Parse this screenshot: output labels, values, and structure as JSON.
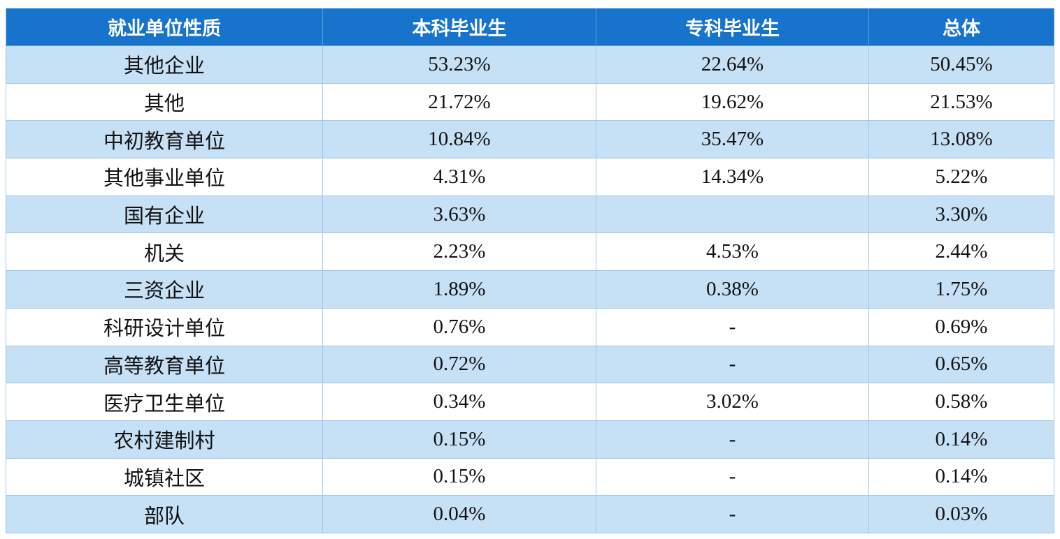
{
  "table": {
    "header": [
      "就业单位性质",
      "本科毕业生",
      "专科毕业生",
      "总体"
    ],
    "rows": [
      [
        "其他企业",
        "53.23%",
        "22.64%",
        "50.45%"
      ],
      [
        "其他",
        "21.72%",
        "19.62%",
        "21.53%"
      ],
      [
        "中初教育单位",
        "10.84%",
        "35.47%",
        "13.08%"
      ],
      [
        "其他事业单位",
        "4.31%",
        "14.34%",
        "5.22%"
      ],
      [
        "国有企业",
        "3.63%",
        null,
        "3.30%"
      ],
      [
        "机关",
        "2.23%",
        "4.53%",
        "2.44%"
      ],
      [
        "三资企业",
        "1.89%",
        "0.38%",
        "1.75%"
      ],
      [
        "科研设计单位",
        "0.76%",
        "-",
        "0.69%"
      ],
      [
        "高等教育单位",
        "0.72%",
        "-",
        "0.65%"
      ],
      [
        "医疗卫生单位",
        "0.34%",
        "3.02%",
        "0.58%"
      ],
      [
        "农村建制村",
        "0.15%",
        "-",
        "0.14%"
      ],
      [
        "城镇社区",
        "0.15%",
        "-",
        "0.14%"
      ],
      [
        "部队",
        "0.04%",
        "-",
        "0.03%"
      ]
    ]
  }
}
